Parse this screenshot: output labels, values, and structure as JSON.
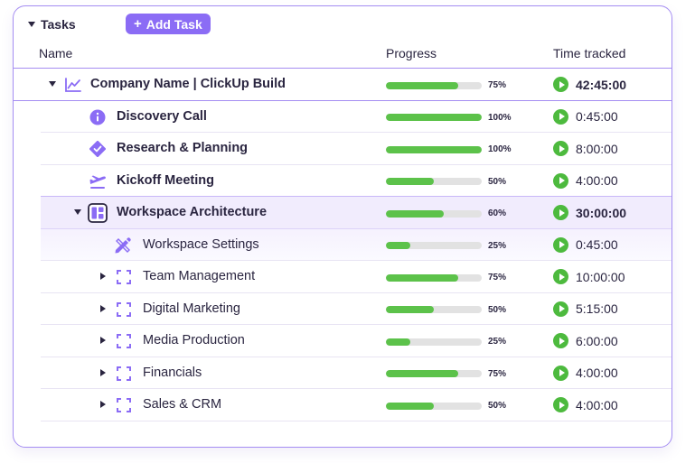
{
  "toolbar": {
    "tasks_label": "Tasks",
    "add_task_label": "Add Task",
    "add_task_plus": "+"
  },
  "columns": {
    "name": "Name",
    "progress": "Progress",
    "time": "Time tracked"
  },
  "colors": {
    "accent": "#8b6cf5",
    "border": "#a58df2",
    "progress": "#5cc24a",
    "play": "#4dba3e"
  },
  "rows": [
    {
      "name": "Company Name | ClickUp Build",
      "icon": "chart-line-icon",
      "progress": 0.75,
      "percent": "75%",
      "time": "42:45:00"
    },
    {
      "name": "Discovery Call",
      "icon": "info-icon",
      "progress": 1.0,
      "percent": "100%",
      "time": "0:45:00"
    },
    {
      "name": "Research & Planning",
      "icon": "verified-badge-icon",
      "progress": 1.0,
      "percent": "100%",
      "time": "8:00:00"
    },
    {
      "name": "Kickoff Meeting",
      "icon": "plane-takeoff-icon",
      "progress": 0.5,
      "percent": "50%",
      "time": "4:00:00"
    },
    {
      "name": "Workspace Architecture",
      "icon": "layout-grid-icon",
      "progress": 0.6,
      "percent": "60%",
      "time": "30:00:00"
    },
    {
      "name": "Workspace Settings",
      "icon": "pencil-ruler-icon",
      "progress": 0.25,
      "percent": "25%",
      "time": "0:45:00"
    },
    {
      "name": "Team Management",
      "icon": "dashed-square-icon",
      "progress": 0.75,
      "percent": "75%",
      "time": "10:00:00"
    },
    {
      "name": "Digital Marketing",
      "icon": "dashed-square-icon",
      "progress": 0.5,
      "percent": "50%",
      "time": "5:15:00"
    },
    {
      "name": "Media Production",
      "icon": "dashed-square-icon",
      "progress": 0.25,
      "percent": "25%",
      "time": "6:00:00"
    },
    {
      "name": "Financials",
      "icon": "dashed-square-icon",
      "progress": 0.75,
      "percent": "75%",
      "time": "4:00:00"
    },
    {
      "name": "Sales & CRM",
      "icon": "dashed-square-icon",
      "progress": 0.5,
      "percent": "50%",
      "time": "4:00:00"
    }
  ]
}
